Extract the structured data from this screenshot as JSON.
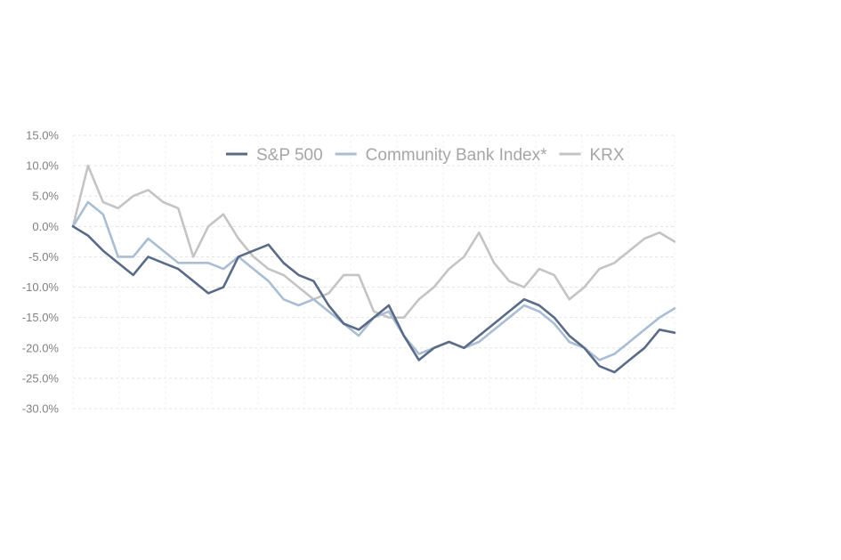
{
  "chart_data": {
    "type": "line",
    "title": "",
    "xlabel": "",
    "ylabel": "",
    "ylim": [
      -30,
      15
    ],
    "yticks": [
      15,
      10,
      5,
      0,
      -5,
      -10,
      -15,
      -20,
      -25,
      -30
    ],
    "ytick_labels": [
      "15.0%",
      "10.0%",
      "5.0%",
      "0.0%",
      "-5.0%",
      "-10.0%",
      "-15.0%",
      "-20.0%",
      "-25.0%",
      "-30.0%"
    ],
    "grid": true,
    "legend_position": "top-right",
    "x_points": 41,
    "series": [
      {
        "name": "S&P 500",
        "color": "#5a6b87",
        "values": [
          0,
          -1.5,
          -4,
          -6,
          -8,
          -5,
          -6,
          -7,
          -9,
          -11,
          -10,
          -5,
          -4,
          -3,
          -6,
          -8,
          -9,
          -13,
          -16,
          -17,
          -15,
          -13,
          -18,
          -22,
          -20,
          -19,
          -20,
          -18,
          -16,
          -14,
          -12,
          -13,
          -15,
          -18,
          -20,
          -23,
          -24,
          -22,
          -20,
          -17,
          -17.5
        ]
      },
      {
        "name": "Community Bank Index*",
        "color": "#a9bdd3",
        "values": [
          0,
          4,
          2,
          -5,
          -5,
          -2,
          -4,
          -6,
          -6,
          -6,
          -7,
          -5,
          -7,
          -9,
          -12,
          -13,
          -12,
          -14,
          -16,
          -18,
          -15,
          -14,
          -18,
          -21,
          -20,
          -19,
          -20,
          -19,
          -17,
          -15,
          -13,
          -14,
          -16,
          -19,
          -20,
          -22,
          -21,
          -19,
          -17,
          -15,
          -13.5
        ]
      },
      {
        "name": "KRX",
        "color": "#c4c4c4",
        "values": [
          0,
          10,
          4,
          3,
          5,
          6,
          4,
          3,
          -5,
          0,
          2,
          -2,
          -5,
          -7,
          -8,
          -10,
          -12,
          -11,
          -8,
          -8,
          -14,
          -15,
          -15,
          -12,
          -10,
          -7,
          -5,
          -1,
          -6,
          -9,
          -10,
          -7,
          -8,
          -12,
          -10,
          -7,
          -6,
          -4,
          -2,
          -1,
          -2.5
        ]
      }
    ]
  }
}
